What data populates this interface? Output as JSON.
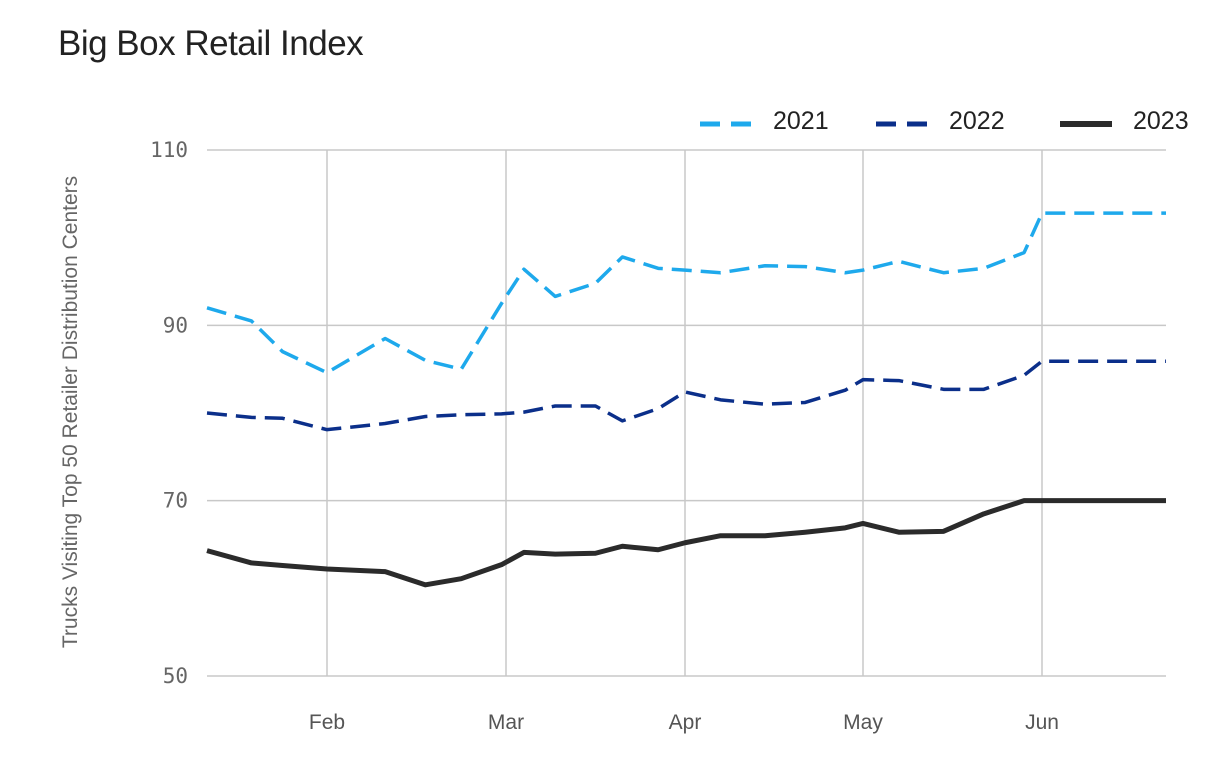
{
  "chart_data": {
    "type": "line",
    "title": "Big Box Retail Index",
    "ylabel": "Trucks Visiting Top 50 Retailer Distribution Centers",
    "xlabel": "",
    "ylim": [
      50,
      110
    ],
    "yticks": [
      50,
      70,
      90,
      110
    ],
    "xticks": [
      {
        "label": "Feb",
        "week": 3
      },
      {
        "label": "Mar",
        "week": 7
      },
      {
        "label": "Apr",
        "week": 11
      },
      {
        "label": "May",
        "week": 15
      },
      {
        "label": "Jun",
        "week": 19
      }
    ],
    "x": [
      0.3,
      1.3,
      2,
      3,
      4.3,
      5.2,
      6,
      6.9,
      7.4,
      8.1,
      9,
      9.6,
      10.4,
      11,
      11.8,
      12.8,
      13.7,
      14.6,
      15,
      15.8,
      16.8,
      17.7,
      18.6,
      19,
      19.9,
      20.8,
      21.6
    ],
    "series": [
      {
        "name": "2021",
        "color": "#1ea9ec",
        "style": "dashed",
        "values": [
          92.0,
          90.5,
          87.0,
          84.6,
          88.5,
          86.0,
          85.0,
          92.5,
          96.4,
          93.3,
          94.8,
          97.8,
          96.5,
          96.3,
          96.0,
          96.8,
          96.7,
          96.0,
          96.3,
          97.3,
          96.0,
          96.5,
          98.3,
          102.8,
          102.8,
          102.8,
          102.8
        ]
      },
      {
        "name": "2022",
        "color": "#0b2f8a",
        "style": "dashed",
        "values": [
          80.0,
          79.5,
          79.4,
          78.1,
          78.8,
          79.6,
          79.8,
          79.9,
          80.1,
          80.8,
          80.8,
          79.1,
          80.5,
          82.4,
          81.5,
          81.0,
          81.2,
          82.6,
          83.8,
          83.7,
          82.7,
          82.7,
          84.3,
          85.9,
          85.9,
          85.9,
          85.9
        ]
      },
      {
        "name": "2023",
        "color": "#2b2b2b",
        "style": "solid",
        "values": [
          64.3,
          62.9,
          62.6,
          62.2,
          61.9,
          60.4,
          61.1,
          62.7,
          64.1,
          63.9,
          64.0,
          64.8,
          64.4,
          65.2,
          66.0,
          66.0,
          66.4,
          66.9,
          67.4,
          66.4,
          66.5,
          68.5,
          70.0,
          70.0,
          70.0,
          70.0,
          70.0
        ]
      }
    ],
    "grid": true,
    "legend_position": "top-right"
  }
}
